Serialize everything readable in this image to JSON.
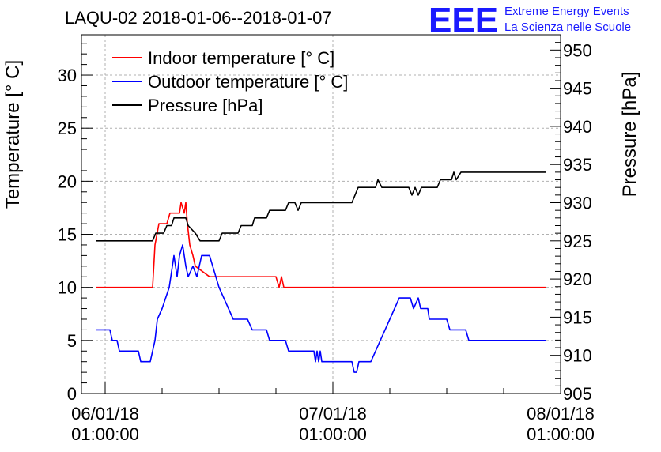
{
  "chart_data": {
    "type": "line",
    "title": "LAQU-02 2018-01-06--2018-01-07",
    "logo": {
      "mark": "EEE",
      "line1": "Extreme Energy Events",
      "line2": "La Scienza nelle Scuole",
      "color": "#1a1aff"
    },
    "ylabel_left": "Temperature [° C]",
    "ylabel_right": "Pressure [hPa]",
    "x_range": [
      "2018-01-05 22:30:00",
      "2018-01-08 01:00:00"
    ],
    "x_ticks": [
      {
        "at": "2018-01-06 01:00:00",
        "line1": "06/01/18",
        "line2": "01:00:00"
      },
      {
        "at": "2018-01-07 01:00:00",
        "line1": "07/01/18",
        "line2": "01:00:00"
      },
      {
        "at": "2018-01-08 01:00:00",
        "line1": "08/01/18",
        "line2": "01:00:00"
      }
    ],
    "ylim_left": [
      0,
      33.8
    ],
    "yticks_left": [
      "0",
      "5",
      "10",
      "15",
      "20",
      "25",
      "30"
    ],
    "ylim_right": [
      905,
      952
    ],
    "yticks_right": [
      "905",
      "910",
      "915",
      "920",
      "925",
      "930",
      "935",
      "940",
      "945",
      "950"
    ],
    "grid": true,
    "legend_position": "top-left",
    "series": [
      {
        "name": "Indoor temperature [° C]",
        "axis": "left",
        "color": "#ff0000",
        "points": [
          [
            "2018-01-06 00:00",
            10
          ],
          [
            "2018-01-06 06:00",
            10
          ],
          [
            "2018-01-06 06:15",
            14
          ],
          [
            "2018-01-06 06:40",
            16
          ],
          [
            "2018-01-06 07:30",
            16
          ],
          [
            "2018-01-06 07:50",
            17
          ],
          [
            "2018-01-06 08:50",
            17
          ],
          [
            "2018-01-06 09:00",
            18
          ],
          [
            "2018-01-06 09:20",
            17
          ],
          [
            "2018-01-06 09:30",
            18
          ],
          [
            "2018-01-06 09:40",
            16
          ],
          [
            "2018-01-06 09:55",
            14
          ],
          [
            "2018-01-06 10:15",
            13
          ],
          [
            "2018-01-06 10:30",
            12
          ],
          [
            "2018-01-06 12:00",
            11
          ],
          [
            "2018-01-06 19:00",
            11
          ],
          [
            "2018-01-06 19:20",
            10
          ],
          [
            "2018-01-06 19:35",
            11
          ],
          [
            "2018-01-06 19:50",
            10
          ],
          [
            "2018-01-07 23:30",
            10
          ]
        ]
      },
      {
        "name": "Outdoor temperature [° C]",
        "axis": "left",
        "color": "#0000ff",
        "points": [
          [
            "2018-01-06 00:00",
            6
          ],
          [
            "2018-01-06 01:30",
            6
          ],
          [
            "2018-01-06 01:45",
            5
          ],
          [
            "2018-01-06 02:15",
            5
          ],
          [
            "2018-01-06 02:30",
            4
          ],
          [
            "2018-01-06 04:30",
            4
          ],
          [
            "2018-01-06 04:45",
            3
          ],
          [
            "2018-01-06 05:45",
            3
          ],
          [
            "2018-01-06 06:15",
            5
          ],
          [
            "2018-01-06 06:30",
            7
          ],
          [
            "2018-01-06 07:00",
            8
          ],
          [
            "2018-01-06 07:45",
            10
          ],
          [
            "2018-01-06 08:15",
            13
          ],
          [
            "2018-01-06 08:35",
            11
          ],
          [
            "2018-01-06 08:50",
            13
          ],
          [
            "2018-01-06 09:10",
            14
          ],
          [
            "2018-01-06 09:30",
            12
          ],
          [
            "2018-01-06 09:45",
            11
          ],
          [
            "2018-01-06 10:15",
            12
          ],
          [
            "2018-01-06 10:40",
            11
          ],
          [
            "2018-01-06 11:10",
            13
          ],
          [
            "2018-01-06 12:00",
            13
          ],
          [
            "2018-01-06 12:20",
            12
          ],
          [
            "2018-01-06 13:00",
            10
          ],
          [
            "2018-01-06 13:30",
            9
          ],
          [
            "2018-01-06 14:00",
            8
          ],
          [
            "2018-01-06 14:30",
            7
          ],
          [
            "2018-01-06 16:00",
            7
          ],
          [
            "2018-01-06 16:30",
            6
          ],
          [
            "2018-01-06 18:00",
            6
          ],
          [
            "2018-01-06 18:20",
            5
          ],
          [
            "2018-01-06 20:00",
            5
          ],
          [
            "2018-01-06 20:20",
            4
          ],
          [
            "2018-01-06 23:00",
            4
          ],
          [
            "2018-01-06 23:10",
            3
          ],
          [
            "2018-01-06 23:20",
            4
          ],
          [
            "2018-01-06 23:30",
            3
          ],
          [
            "2018-01-06 23:40",
            4
          ],
          [
            "2018-01-06 23:50",
            3
          ],
          [
            "2018-01-07 01:30",
            3
          ],
          [
            "2018-01-07 03:00",
            3
          ],
          [
            "2018-01-07 03:15",
            2
          ],
          [
            "2018-01-07 03:30",
            2
          ],
          [
            "2018-01-07 03:45",
            3
          ],
          [
            "2018-01-07 05:00",
            3
          ],
          [
            "2018-01-07 05:30",
            4
          ],
          [
            "2018-01-07 06:00",
            5
          ],
          [
            "2018-01-07 06:30",
            6
          ],
          [
            "2018-01-07 07:00",
            7
          ],
          [
            "2018-01-07 07:30",
            8
          ],
          [
            "2018-01-07 08:00",
            9
          ],
          [
            "2018-01-07 09:10",
            9
          ],
          [
            "2018-01-07 09:30",
            8
          ],
          [
            "2018-01-07 10:00",
            9
          ],
          [
            "2018-01-07 10:15",
            8
          ],
          [
            "2018-01-07 11:00",
            8
          ],
          [
            "2018-01-07 11:10",
            7
          ],
          [
            "2018-01-07 13:00",
            7
          ],
          [
            "2018-01-07 13:20",
            6
          ],
          [
            "2018-01-07 15:00",
            6
          ],
          [
            "2018-01-07 15:20",
            5
          ],
          [
            "2018-01-07 17:00",
            5
          ],
          [
            "2018-01-07 23:30",
            5
          ]
        ]
      },
      {
        "name": "Pressure [hPa]",
        "axis": "right",
        "color": "#000000",
        "points": [
          [
            "2018-01-06 00:00",
            925
          ],
          [
            "2018-01-06 06:00",
            925
          ],
          [
            "2018-01-06 06:20",
            926
          ],
          [
            "2018-01-06 07:10",
            926
          ],
          [
            "2018-01-06 07:30",
            927
          ],
          [
            "2018-01-06 08:00",
            927
          ],
          [
            "2018-01-06 08:15",
            928
          ],
          [
            "2018-01-06 09:30",
            928
          ],
          [
            "2018-01-06 09:45",
            927
          ],
          [
            "2018-01-06 10:30",
            926
          ],
          [
            "2018-01-06 11:00",
            925
          ],
          [
            "2018-01-06 13:00",
            925
          ],
          [
            "2018-01-06 13:20",
            926
          ],
          [
            "2018-01-06 15:00",
            926
          ],
          [
            "2018-01-06 15:20",
            927
          ],
          [
            "2018-01-06 16:30",
            927
          ],
          [
            "2018-01-06 16:45",
            928
          ],
          [
            "2018-01-06 18:00",
            928
          ],
          [
            "2018-01-06 18:20",
            929
          ],
          [
            "2018-01-06 20:00",
            929
          ],
          [
            "2018-01-06 20:20",
            930
          ],
          [
            "2018-01-06 21:00",
            930
          ],
          [
            "2018-01-06 21:20",
            929
          ],
          [
            "2018-01-06 21:40",
            930
          ],
          [
            "2018-01-06 22:00",
            930
          ],
          [
            "2018-01-07 00:00",
            930
          ],
          [
            "2018-01-07 03:00",
            930
          ],
          [
            "2018-01-07 03:20",
            931
          ],
          [
            "2018-01-07 03:40",
            932
          ],
          [
            "2018-01-07 05:30",
            932
          ],
          [
            "2018-01-07 05:45",
            933
          ],
          [
            "2018-01-07 06:10",
            932
          ],
          [
            "2018-01-07 09:00",
            932
          ],
          [
            "2018-01-07 09:20",
            931
          ],
          [
            "2018-01-07 09:40",
            932
          ],
          [
            "2018-01-07 10:00",
            931
          ],
          [
            "2018-01-07 10:20",
            932
          ],
          [
            "2018-01-07 12:00",
            932
          ],
          [
            "2018-01-07 12:20",
            933
          ],
          [
            "2018-01-07 13:30",
            933
          ],
          [
            "2018-01-07 13:45",
            934
          ],
          [
            "2018-01-07 14:00",
            933
          ],
          [
            "2018-01-07 14:30",
            934
          ],
          [
            "2018-01-07 23:30",
            934
          ]
        ]
      }
    ]
  }
}
